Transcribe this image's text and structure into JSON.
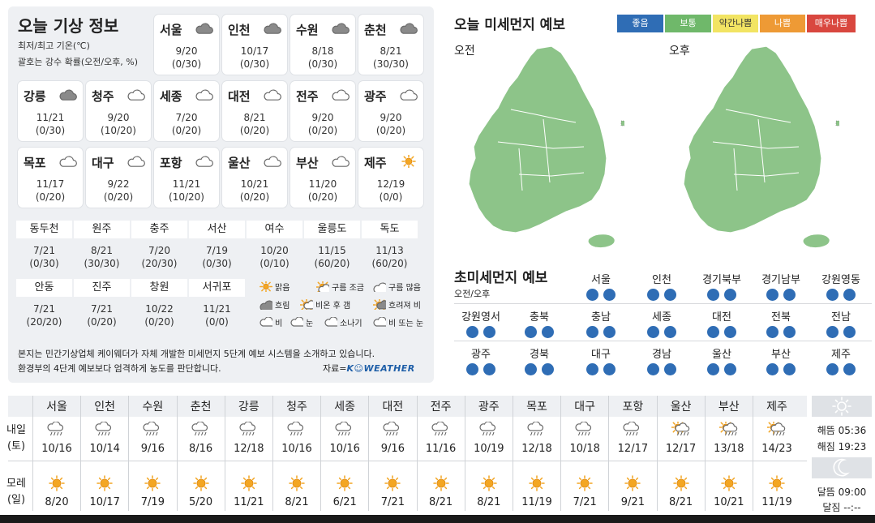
{
  "left": {
    "title": "오늘 기상 정보",
    "sub1": "최저/최고 기온(℃)",
    "sub2": "괄호는 강수 확률(오전/오후, %)",
    "cards": [
      {
        "name": "서울",
        "temp": "9/20",
        "prob": "(0/30)",
        "icon": "cloudy"
      },
      {
        "name": "인천",
        "temp": "10/17",
        "prob": "(0/30)",
        "icon": "cloudy"
      },
      {
        "name": "수원",
        "temp": "8/18",
        "prob": "(0/30)",
        "icon": "cloudy"
      },
      {
        "name": "춘천",
        "temp": "8/21",
        "prob": "(30/30)",
        "icon": "cloudy"
      },
      {
        "name": "강릉",
        "temp": "11/21",
        "prob": "(0/30)",
        "icon": "cloudy"
      },
      {
        "name": "청주",
        "temp": "9/20",
        "prob": "(10/20)",
        "icon": "mostly-cloudy"
      },
      {
        "name": "세종",
        "temp": "7/20",
        "prob": "(0/20)",
        "icon": "mostly-cloudy"
      },
      {
        "name": "대전",
        "temp": "8/21",
        "prob": "(0/20)",
        "icon": "mostly-cloudy"
      },
      {
        "name": "전주",
        "temp": "9/20",
        "prob": "(0/20)",
        "icon": "mostly-cloudy"
      },
      {
        "name": "광주",
        "temp": "9/20",
        "prob": "(0/20)",
        "icon": "mostly-cloudy"
      },
      {
        "name": "목포",
        "temp": "11/17",
        "prob": "(0/20)",
        "icon": "mostly-cloudy"
      },
      {
        "name": "대구",
        "temp": "9/22",
        "prob": "(0/20)",
        "icon": "mostly-cloudy"
      },
      {
        "name": "포항",
        "temp": "11/21",
        "prob": "(10/20)",
        "icon": "mostly-cloudy"
      },
      {
        "name": "울산",
        "temp": "10/21",
        "prob": "(0/20)",
        "icon": "mostly-cloudy"
      },
      {
        "name": "부산",
        "temp": "11/20",
        "prob": "(0/20)",
        "icon": "mostly-cloudy"
      },
      {
        "name": "제주",
        "temp": "12/19",
        "prob": "(0/0)",
        "icon": "sunny"
      }
    ],
    "small": [
      {
        "name": "동두천",
        "temp": "7/21",
        "prob": "(0/30)"
      },
      {
        "name": "원주",
        "temp": "8/21",
        "prob": "(30/30)"
      },
      {
        "name": "충주",
        "temp": "7/20",
        "prob": "(20/30)"
      },
      {
        "name": "서산",
        "temp": "7/19",
        "prob": "(0/30)"
      },
      {
        "name": "여수",
        "temp": "10/20",
        "prob": "(0/10)"
      },
      {
        "name": "울릉도",
        "temp": "11/15",
        "prob": "(60/20)"
      },
      {
        "name": "독도",
        "temp": "11/13",
        "prob": "(60/20)"
      },
      {
        "name": "안동",
        "temp": "7/21",
        "prob": "(20/20)"
      },
      {
        "name": "진주",
        "temp": "7/21",
        "prob": "(0/20)"
      },
      {
        "name": "창원",
        "temp": "10/22",
        "prob": "(0/20)"
      },
      {
        "name": "서귀포",
        "temp": "11/21",
        "prob": "(0/0)"
      }
    ],
    "legend": [
      {
        "label": "맑음",
        "icon": "sunny"
      },
      {
        "label": "구름 조금",
        "icon": "partly-cloudy"
      },
      {
        "label": "구름 많음",
        "icon": "mostly-cloudy"
      },
      {
        "label": "흐림",
        "icon": "cloudy"
      },
      {
        "label": "비온 후 갬",
        "icon": "rain-then-clear"
      },
      {
        "label": "흐려져 비",
        "icon": "cloudy-then-rain"
      },
      {
        "label": "비",
        "icon": "rain"
      },
      {
        "label": "눈",
        "icon": "snow"
      },
      {
        "label": "소나기",
        "icon": "shower"
      },
      {
        "label": "비 또는 눈",
        "icon": "rain-or-snow"
      }
    ],
    "note1": "본지는 민간기상업체 케이웨더가 자체 개발한 미세먼지 5단계 예보 시스템을 소개하고 있습니다.",
    "note2": "환경부의 4단계 예보보다 엄격하게 농도를 판단합니다.",
    "credit_prefix": "자료=",
    "credit_brand": "K☺WEATHER"
  },
  "right": {
    "title": "오늘 미세먼지 예보",
    "levels": [
      {
        "label": "좋음",
        "color": "#2f6db5"
      },
      {
        "label": "보통",
        "color": "#6fb86a"
      },
      {
        "label": "약간나쁨",
        "color": "#f2e463"
      },
      {
        "label": "나쁨",
        "color": "#ee9a35"
      },
      {
        "label": "매우나쁨",
        "color": "#d9473f"
      }
    ],
    "am": "오전",
    "pm": "오후",
    "map_color": "#8dc489",
    "pm_title": "초미세먼지 예보",
    "pm_sub": "오전/오후",
    "pm_regions": [
      "서울",
      "인천",
      "경기북부",
      "경기남부",
      "강원영동",
      "강원영서",
      "충북",
      "충남",
      "세종",
      "대전",
      "전북",
      "전남",
      "광주",
      "경북",
      "대구",
      "경남",
      "울산",
      "부산",
      "제주"
    ]
  },
  "forecast": {
    "cities": [
      "서울",
      "인천",
      "수원",
      "춘천",
      "강릉",
      "청주",
      "세종",
      "대전",
      "전주",
      "광주",
      "목포",
      "대구",
      "포항",
      "울산",
      "부산",
      "제주"
    ],
    "day1_label_a": "내일",
    "day1_label_b": "(토)",
    "day2_label_a": "모레",
    "day2_label_b": "(일)",
    "day1": [
      {
        "temp": "10/16",
        "icon": "rain"
      },
      {
        "temp": "10/14",
        "icon": "rain"
      },
      {
        "temp": "9/16",
        "icon": "rain"
      },
      {
        "temp": "8/16",
        "icon": "rain"
      },
      {
        "temp": "12/18",
        "icon": "rain"
      },
      {
        "temp": "10/16",
        "icon": "rain"
      },
      {
        "temp": "10/16",
        "icon": "rain"
      },
      {
        "temp": "9/16",
        "icon": "rain"
      },
      {
        "temp": "11/16",
        "icon": "rain"
      },
      {
        "temp": "10/19",
        "icon": "rain"
      },
      {
        "temp": "12/18",
        "icon": "rain"
      },
      {
        "temp": "10/18",
        "icon": "rain"
      },
      {
        "temp": "12/17",
        "icon": "rain"
      },
      {
        "temp": "12/17",
        "icon": "rain-then-clear"
      },
      {
        "temp": "13/18",
        "icon": "rain-then-clear"
      },
      {
        "temp": "14/23",
        "icon": "rain-then-clear"
      }
    ],
    "day2": [
      {
        "temp": "8/20",
        "icon": "sunny"
      },
      {
        "temp": "10/17",
        "icon": "sunny"
      },
      {
        "temp": "7/19",
        "icon": "sunny"
      },
      {
        "temp": "5/20",
        "icon": "sunny"
      },
      {
        "temp": "11/21",
        "icon": "sunny"
      },
      {
        "temp": "8/21",
        "icon": "sunny"
      },
      {
        "temp": "6/21",
        "icon": "sunny"
      },
      {
        "temp": "7/21",
        "icon": "sunny"
      },
      {
        "temp": "8/21",
        "icon": "sunny"
      },
      {
        "temp": "8/21",
        "icon": "sunny"
      },
      {
        "temp": "11/19",
        "icon": "sunny"
      },
      {
        "temp": "7/21",
        "icon": "sunny"
      },
      {
        "temp": "9/21",
        "icon": "sunny"
      },
      {
        "temp": "8/21",
        "icon": "sunny"
      },
      {
        "temp": "10/21",
        "icon": "sunny"
      },
      {
        "temp": "11/19",
        "icon": "sunny"
      }
    ],
    "sunrise": "해뜸 05:36",
    "sunset": "해짐 19:23",
    "moonrise": "달뜸 09:00",
    "moonset": "달짐 --:--",
    "sun_icon": "sun-icon",
    "moon_icon": "moon-icon"
  }
}
